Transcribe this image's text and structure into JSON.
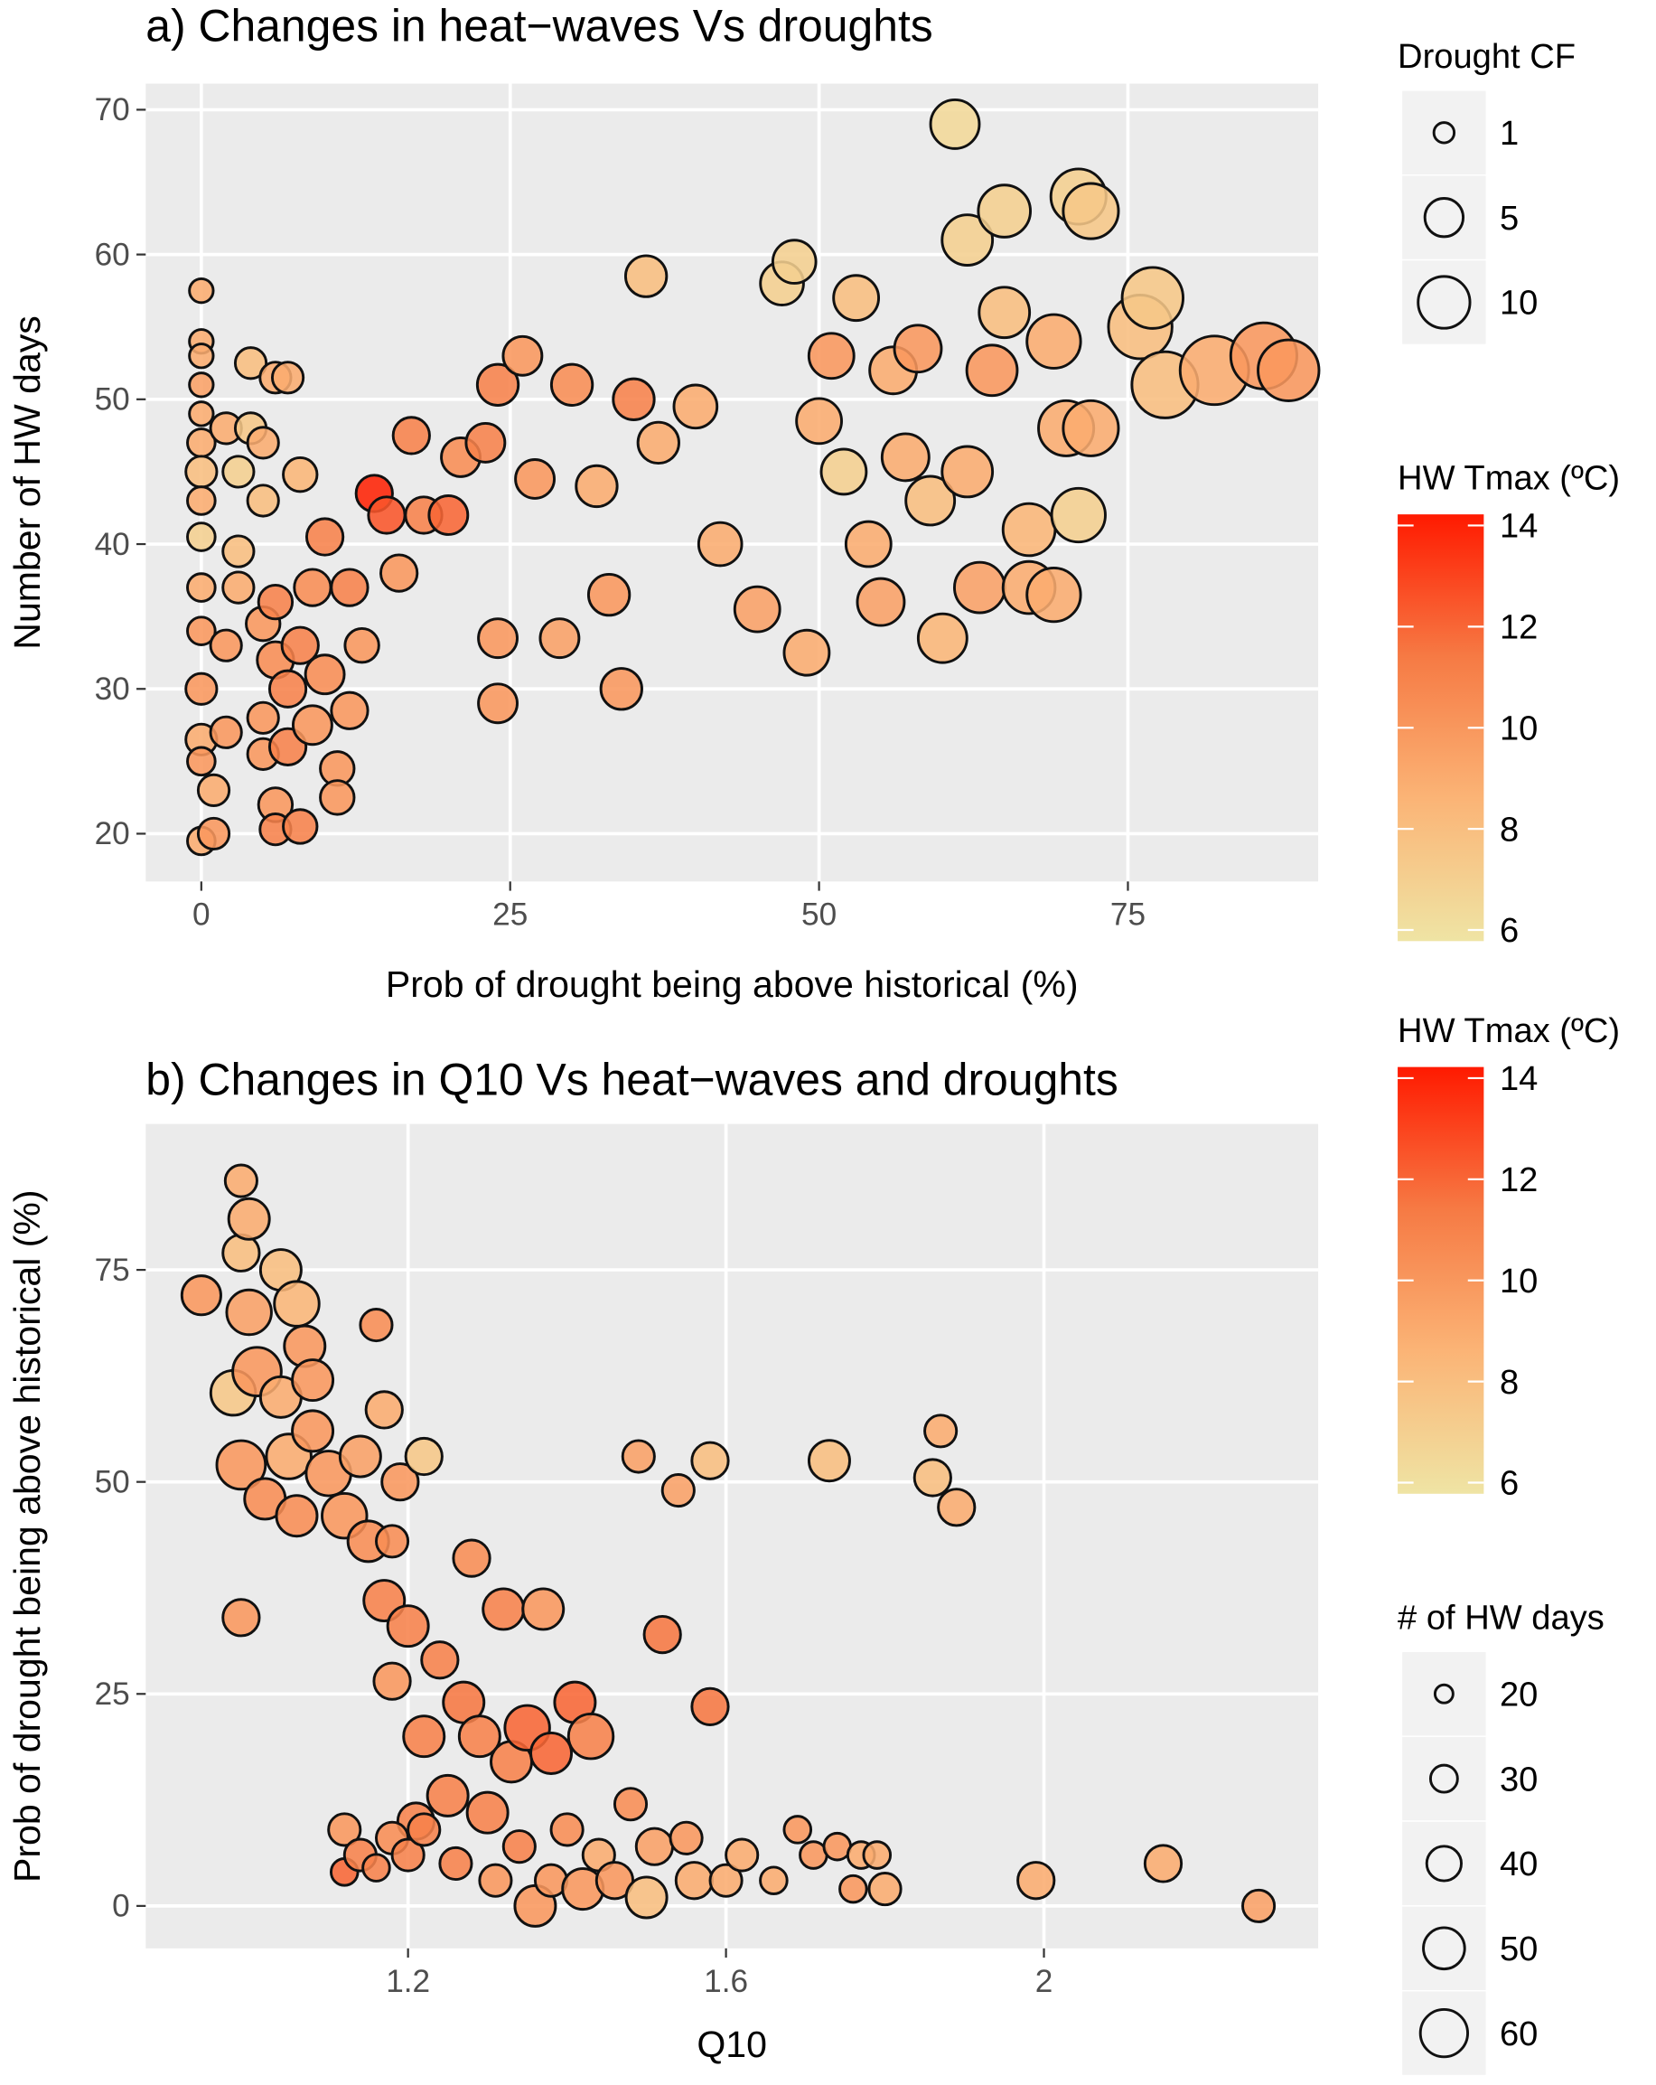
{
  "chart_data": [
    {
      "type": "scatter",
      "title": "a) Changes in heat−waves Vs droughts",
      "x_label": "Prob of drought being above historical (%)",
      "y_label": "Number of HW days",
      "xlim": [
        -4.5,
        90.4
      ],
      "ylim": [
        16.7,
        71.8
      ],
      "xticks": [
        0,
        25,
        50,
        75
      ],
      "yticks": [
        20,
        30,
        40,
        50,
        60,
        70
      ],
      "grid": true,
      "points": {
        "x": [
          0,
          0,
          0,
          0,
          0,
          0,
          0,
          0,
          0,
          0,
          0,
          0,
          0,
          0,
          0,
          1,
          1,
          2,
          2,
          2,
          3,
          3,
          3,
          4,
          4,
          5,
          5,
          5,
          5,
          5,
          6,
          6,
          6,
          6,
          6,
          7,
          7,
          7,
          8,
          8,
          8,
          9,
          9,
          10,
          10,
          11,
          11,
          12,
          12,
          13,
          14,
          15,
          16,
          17,
          18,
          20,
          21,
          23,
          24,
          24,
          24,
          26,
          27,
          29,
          30,
          32,
          33,
          34,
          35,
          36,
          37,
          40,
          42,
          45,
          47,
          48,
          49,
          50,
          51,
          52,
          53,
          54,
          55,
          56,
          57,
          58,
          59,
          60,
          61,
          62,
          62,
          63,
          64,
          65,
          65,
          67,
          67,
          69,
          69,
          70,
          71,
          71,
          72,
          72,
          76,
          77,
          78,
          82,
          86,
          88
        ],
        "y": [
          57.5,
          54,
          53,
          51,
          49,
          47,
          45,
          43,
          40.5,
          37,
          34,
          30,
          26.5,
          25,
          19.5,
          23,
          20,
          48,
          33,
          27,
          45,
          39.5,
          37,
          52.5,
          48,
          47,
          43,
          34.5,
          28,
          25.5,
          51.5,
          36,
          32,
          22,
          20.3,
          51.5,
          30,
          26,
          44.8,
          33,
          20.5,
          37,
          27.5,
          31,
          40.5,
          24.5,
          22.5,
          37,
          28.5,
          33,
          43.5,
          42,
          38,
          47.5,
          42,
          42,
          46,
          47,
          51,
          33.5,
          29,
          53,
          44.5,
          33.5,
          51,
          44,
          36.5,
          30,
          50,
          58.5,
          47,
          49.5,
          40,
          35.5,
          58,
          59.5,
          32.5,
          48.5,
          53,
          45,
          57,
          40,
          36,
          52,
          46,
          53.5,
          43,
          33.5,
          69,
          61,
          45,
          37,
          52,
          56,
          63,
          37,
          41,
          36.5,
          54,
          48,
          64,
          42,
          48,
          63,
          55,
          57,
          51,
          52,
          53,
          52
        ],
        "size": [
          1,
          1,
          1,
          1,
          1,
          1.5,
          2,
          1.5,
          1.5,
          1.5,
          1.5,
          2,
          2,
          1.5,
          1.5,
          2,
          2,
          2,
          2,
          2,
          2,
          2,
          2,
          2,
          2,
          2,
          2,
          2.5,
          2,
          2,
          2,
          2.5,
          3,
          2.5,
          2,
          2,
          3,
          3,
          2.5,
          3,
          2.5,
          3,
          3.5,
          3.5,
          3,
          2.5,
          2.5,
          3,
          3,
          2.5,
          3,
          3,
          3,
          3,
          3,
          3.5,
          3.5,
          3.5,
          4,
          3.5,
          3.5,
          3.5,
          3.5,
          3.5,
          4,
          4,
          4,
          4,
          4,
          4,
          4,
          4.5,
          4.5,
          5,
          4.5,
          4.5,
          5,
          5,
          5,
          5,
          5,
          5,
          5.5,
          5.5,
          5.5,
          5.5,
          6,
          6,
          6,
          6.5,
          6.5,
          6.5,
          6.5,
          6.5,
          7,
          7,
          7,
          7.5,
          7.5,
          8,
          8,
          7.5,
          8,
          8,
          11,
          10,
          12,
          13,
          12,
          10
        ],
        "color": [
          9,
          9,
          9,
          9.5,
          9,
          9,
          8,
          9,
          7,
          9,
          10,
          10,
          9,
          10,
          9,
          9,
          10,
          9,
          10,
          10,
          7,
          8,
          9,
          8,
          7.5,
          9,
          8,
          10,
          10,
          10,
          9,
          11,
          10.5,
          10,
          11,
          9,
          11,
          11,
          8.5,
          11,
          11,
          10.5,
          10,
          10.5,
          11,
          10,
          10,
          11,
          10,
          10,
          14,
          12.5,
          10,
          11,
          11,
          12,
          10.5,
          11,
          11,
          10,
          10,
          10,
          10,
          9.5,
          10.5,
          9,
          10,
          10,
          11,
          8,
          9,
          9,
          9,
          9.5,
          7,
          7,
          9,
          9,
          10,
          7,
          8,
          9,
          9.5,
          9,
          9,
          10,
          8,
          8.5,
          6.5,
          7,
          9,
          9.5,
          10,
          8,
          7,
          9,
          8.5,
          9,
          9,
          9,
          7,
          7,
          9,
          7.5,
          8,
          7.5,
          8,
          9,
          10,
          10
        ]
      },
      "size_legend": {
        "title": "Drought CF",
        "values": [
          1,
          5,
          10
        ]
      },
      "colorbar": {
        "title": "HW Tmax (ºC)",
        "lim": [
          5.78,
          14.22
        ],
        "ticks": [
          6,
          8,
          10,
          12,
          14
        ],
        "colors": [
          "#efe4a4",
          "#fbb476",
          "#f67a44",
          "#ff1a00"
        ]
      }
    },
    {
      "type": "scatter",
      "title": "b) Changes in Q10 Vs heat−waves and droughts",
      "x_label": "Q10",
      "y_label": "Prob of drought being above historical (%)",
      "xlim": [
        0.87,
        2.345
      ],
      "ylim": [
        -5,
        92.2
      ],
      "xticks": [
        1.2,
        1.6,
        2.0
      ],
      "yticks": [
        0,
        25,
        50,
        75
      ],
      "grid": true,
      "points": {
        "x": [
          0.94,
          0.98,
          0.99,
          0.99,
          1.0,
          1.0,
          0.99,
          0.99,
          1.01,
          1.02,
          1.04,
          1.04,
          1.05,
          1.06,
          1.06,
          1.07,
          1.08,
          1.08,
          1.1,
          1.12,
          1.14,
          1.15,
          1.16,
          1.17,
          1.17,
          1.18,
          1.18,
          1.19,
          1.2,
          1.21,
          1.22,
          1.22,
          1.12,
          1.12,
          1.14,
          1.16,
          1.18,
          1.2,
          1.22,
          1.24,
          1.25,
          1.26,
          1.27,
          1.28,
          1.29,
          1.3,
          1.31,
          1.32,
          1.33,
          1.34,
          1.35,
          1.36,
          1.37,
          1.38,
          1.38,
          1.4,
          1.41,
          1.42,
          1.43,
          1.44,
          1.46,
          1.48,
          1.49,
          1.5,
          1.51,
          1.52,
          1.54,
          1.55,
          1.56,
          1.58,
          1.58,
          1.6,
          1.62,
          1.66,
          1.69,
          1.71,
          1.73,
          1.74,
          1.76,
          1.77,
          1.79,
          1.8,
          1.86,
          1.87,
          1.89,
          1.99,
          2.15,
          2.27
        ],
        "y": [
          72,
          60.5,
          85.5,
          77,
          81,
          70,
          52,
          34,
          63,
          48,
          75,
          60,
          53,
          46,
          71,
          66,
          56,
          62,
          51,
          46,
          53,
          43,
          68.5,
          58.5,
          36,
          26.5,
          43,
          50,
          33,
          10,
          53,
          20,
          9,
          4,
          6,
          4.5,
          8,
          6,
          9,
          29,
          13,
          5,
          24,
          41,
          20,
          11,
          3,
          35,
          17,
          7,
          21,
          0,
          35,
          3,
          18,
          9,
          24,
          2,
          20,
          6,
          3,
          12,
          53,
          1,
          7,
          32,
          49,
          8,
          3,
          52.5,
          23.5,
          3,
          6,
          3,
          9,
          6,
          52.5,
          7,
          2,
          6,
          6,
          2,
          50.5,
          56,
          47,
          3,
          5,
          0
        ],
        "size": [
          38,
          45,
          30,
          35,
          40,
          45,
          50,
          35,
          50,
          40,
          40,
          40,
          45,
          40,
          45,
          40,
          40,
          40,
          45,
          45,
          40,
          40,
          30,
          35,
          40,
          35,
          30,
          35,
          40,
          35,
          35,
          40,
          30,
          25,
          30,
          25,
          30,
          30,
          30,
          35,
          40,
          30,
          40,
          35,
          40,
          40,
          30,
          40,
          40,
          30,
          45,
          40,
          40,
          30,
          40,
          30,
          40,
          40,
          45,
          30,
          35,
          30,
          30,
          40,
          35,
          35,
          30,
          30,
          35,
          35,
          35,
          30,
          30,
          25,
          25,
          25,
          40,
          25,
          25,
          25,
          25,
          30,
          35,
          30,
          35,
          35,
          35,
          30
        ],
        "color": [
          10,
          7.5,
          9,
          8,
          9,
          9.5,
          10,
          10,
          10,
          10.5,
          8,
          9,
          9,
          10.5,
          8.5,
          10,
          10,
          10,
          10,
          10,
          9.5,
          10.5,
          10.5,
          9,
          11,
          10,
          10.5,
          10,
          11,
          11,
          7.5,
          11,
          10,
          12,
          11,
          11,
          10.5,
          11,
          11,
          11,
          11,
          11,
          11.5,
          10.5,
          11,
          11,
          10,
          11,
          11,
          11,
          12,
          10,
          10,
          10,
          12,
          10.5,
          12,
          10,
          11,
          9,
          10,
          10.5,
          9.5,
          8,
          9.5,
          11.5,
          9.5,
          10,
          9,
          8,
          11.5,
          9,
          9,
          9,
          10,
          10,
          8,
          10,
          10,
          9,
          9,
          9,
          8,
          9,
          9,
          9,
          9,
          9.5
        ]
      },
      "size_legend": {
        "title": "# of HW days",
        "values": [
          20,
          30,
          40,
          50,
          60
        ]
      },
      "colorbar": {
        "title": "HW Tmax (ºC)",
        "lim": [
          5.78,
          14.22
        ],
        "ticks": [
          6,
          8,
          10,
          12,
          14
        ],
        "colors": [
          "#efe4a4",
          "#fbb476",
          "#f67a44",
          "#ff1a00"
        ]
      }
    }
  ]
}
